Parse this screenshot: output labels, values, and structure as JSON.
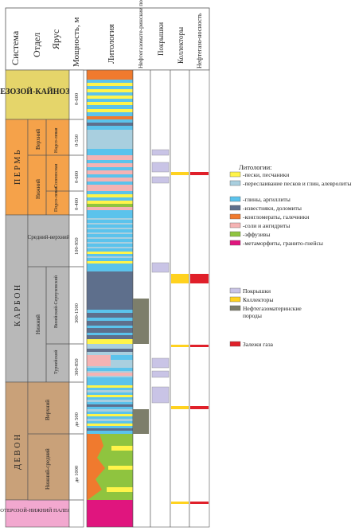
{
  "headers": {
    "system": "Система",
    "department": "Отдел",
    "stage": "Ярус",
    "thickness": "Мощность, м",
    "lithology": "Литология",
    "source_rock": "Нефтегазомате-ринские породы",
    "seals": "Покрышки",
    "reservoirs": "Коллекторы",
    "oil_gas": "Нефтегазо-носность"
  },
  "systems": [
    {
      "label": "МЕЗОЗОЙ-КАЙНОЗОЙ",
      "color": "#e5d56a"
    },
    {
      "label": "П Е Р М Ь",
      "color": "#f5a24a"
    },
    {
      "label": "К А Р Б О Н",
      "color": "#b8b8b8"
    },
    {
      "label": "Д Е В О Н",
      "color": "#c9a179"
    },
    {
      "label": "ПРОТЕРОЗОЙ-НИЖНИЙ ПАЛЕОЗОЙ",
      "color": "#f2a8cf"
    }
  ],
  "departments": {
    "perm_upper": "Верхний",
    "perm_lower": "Нижний",
    "carb_middle_upper": "Средний-верхний",
    "carb_lower": "Нижний",
    "dev_upper": "Верхний",
    "dev_lower_middle": "Нижний-средний"
  },
  "stages": {
    "ufimian": "Надсо-левая",
    "salt": "Соленосная",
    "subsalt": "Подсо-левая",
    "visean": "Визейский-Серпуховский",
    "tournaisian": "Турнейский"
  },
  "thicknesses": [
    "0-600",
    "0-550",
    "0-600",
    "0-400",
    "100-950",
    "300-1500",
    "300-850",
    "до 500",
    "до 1000"
  ],
  "legend": {
    "title": "Литологии:",
    "items": [
      {
        "label": "-пески, песчаники",
        "color": "#fff44a"
      },
      {
        "label": "-переслаивание песков и глин, алевролиты",
        "color": "#a9cfdf"
      },
      {
        "label": "-глины, аргиллиты",
        "color": "#5bc3ec"
      },
      {
        "label": "-известняки, доломиты",
        "color": "#5e6f8c"
      },
      {
        "label": "-конгломераты, галечники",
        "color": "#f07a2e"
      },
      {
        "label": "-соли и ангидриты",
        "color": "#f5b3b3"
      },
      {
        "label": "-эффузивы",
        "color": "#8fc43f"
      },
      {
        "label": "-метаморфиты, гранито-гнейсы",
        "color": "#e0157e"
      }
    ],
    "items2": [
      {
        "label": "Покрышки",
        "color": "#c9c4e6"
      },
      {
        "label": "Коллекторы",
        "color": "#ffd21f"
      },
      {
        "label": "Нефтегазоматеринские породы",
        "color": "#7d7e6b"
      }
    ],
    "items3": [
      {
        "label": "Залежи газа",
        "color": "#e0202a"
      }
    ]
  }
}
